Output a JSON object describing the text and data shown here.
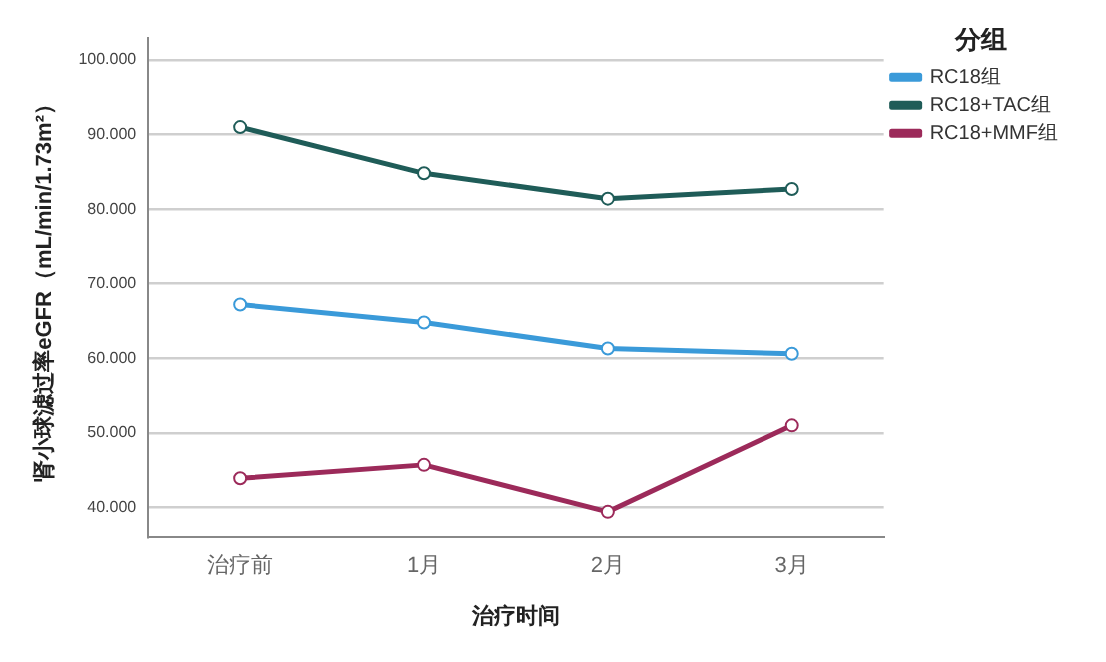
{
  "chart_data": {
    "type": "line",
    "xlabel": "治疗时间",
    "ylabel": "肾小球滤过率eGFR（mL/min/1.73m²）",
    "legend_title": "分组",
    "categories": [
      "治疗前",
      "1月",
      "2月",
      "3月"
    ],
    "series": [
      {
        "name": "RC18组",
        "color": "#3a9ad9",
        "values": [
          67.2,
          64.8,
          61.3,
          60.6
        ]
      },
      {
        "name": "RC18+TAC组",
        "color": "#1f5c58",
        "values": [
          91.0,
          84.8,
          81.4,
          82.7
        ]
      },
      {
        "name": "RC18+MMF组",
        "color": "#9c2a5a",
        "values": [
          43.9,
          45.7,
          39.4,
          51.0
        ]
      }
    ],
    "ylim": [
      36,
      103
    ],
    "yticks": [
      {
        "value": 40,
        "label": "40.000"
      },
      {
        "value": 50,
        "label": "50.000"
      },
      {
        "value": 60,
        "label": "60.000"
      },
      {
        "value": 70,
        "label": "70.000"
      },
      {
        "value": 80,
        "label": "80.000"
      },
      {
        "value": 90,
        "label": "90.000"
      },
      {
        "value": 100,
        "label": "100.000"
      }
    ],
    "grid": "y",
    "legend": "top right",
    "marker": "circle",
    "line_style": "solid"
  }
}
